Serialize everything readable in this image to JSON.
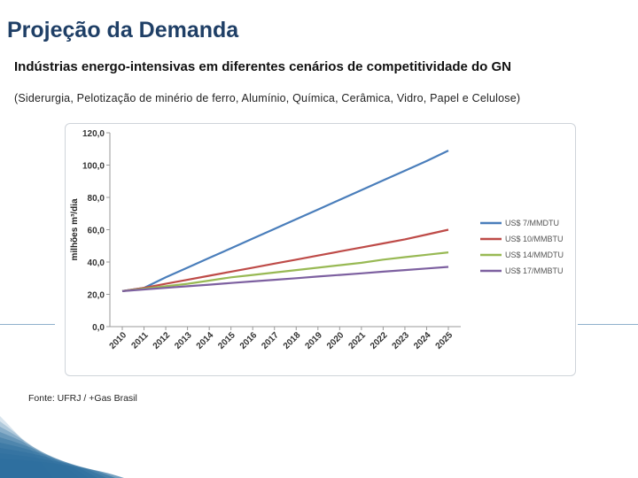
{
  "slide": {
    "title": "Projeção da Demanda",
    "subtitle": "Indústrias energo-intensivas em diferentes cenários de competitividade do GN",
    "scope": "(Siderurgia, Pelotização de minério de ferro, Alumínio, Química, Cerâmica, Vidro, Papel e Celulose)",
    "source": "Fonte: UFRJ / +Gas Brasil"
  },
  "chart_data": {
    "type": "line",
    "title": "",
    "xlabel": "",
    "ylabel": "milhões m³/dia",
    "ylim": [
      0,
      120
    ],
    "yticks": [
      "0,0",
      "20,0",
      "40,0",
      "60,0",
      "80,0",
      "100,0",
      "120,0"
    ],
    "yticks_values": [
      0,
      20,
      40,
      60,
      80,
      100,
      120
    ],
    "x": [
      "2010",
      "2011",
      "2012",
      "2013",
      "2014",
      "2015",
      "2016",
      "2017",
      "2018",
      "2019",
      "2020",
      "2021",
      "2022",
      "2023",
      "2024",
      "2025"
    ],
    "legend_position": "right",
    "series": [
      {
        "name": "US$ 7/MMDTU",
        "color": "#4a7ebb",
        "values": [
          22.0,
          24.0,
          30.5,
          36.5,
          42.5,
          48.5,
          54.5,
          60.5,
          66.5,
          72.5,
          78.5,
          84.5,
          90.5,
          96.5,
          102.5,
          109.0
        ]
      },
      {
        "name": "US$ 10/MMBTU",
        "color": "#be4b48",
        "values": [
          22.0,
          24.0,
          26.5,
          29.0,
          31.5,
          34.0,
          36.5,
          39.0,
          41.5,
          44.0,
          46.5,
          49.0,
          51.5,
          54.0,
          57.0,
          60.0
        ]
      },
      {
        "name": "US$ 14/MMDTU",
        "color": "#98b954",
        "values": [
          22.0,
          23.5,
          25.0,
          26.5,
          28.5,
          30.5,
          32.0,
          33.5,
          35.0,
          36.5,
          38.0,
          39.5,
          41.5,
          43.0,
          44.5,
          46.0
        ]
      },
      {
        "name": "US$ 17/MMBTU",
        "color": "#7d60a0",
        "values": [
          22.0,
          23.0,
          24.0,
          25.0,
          26.0,
          27.0,
          28.0,
          29.0,
          30.0,
          31.0,
          32.0,
          33.0,
          34.0,
          35.0,
          36.0,
          37.0
        ]
      }
    ]
  },
  "decor": {
    "accent": "#1f3f66",
    "corner_color": "#2e6f9e"
  }
}
